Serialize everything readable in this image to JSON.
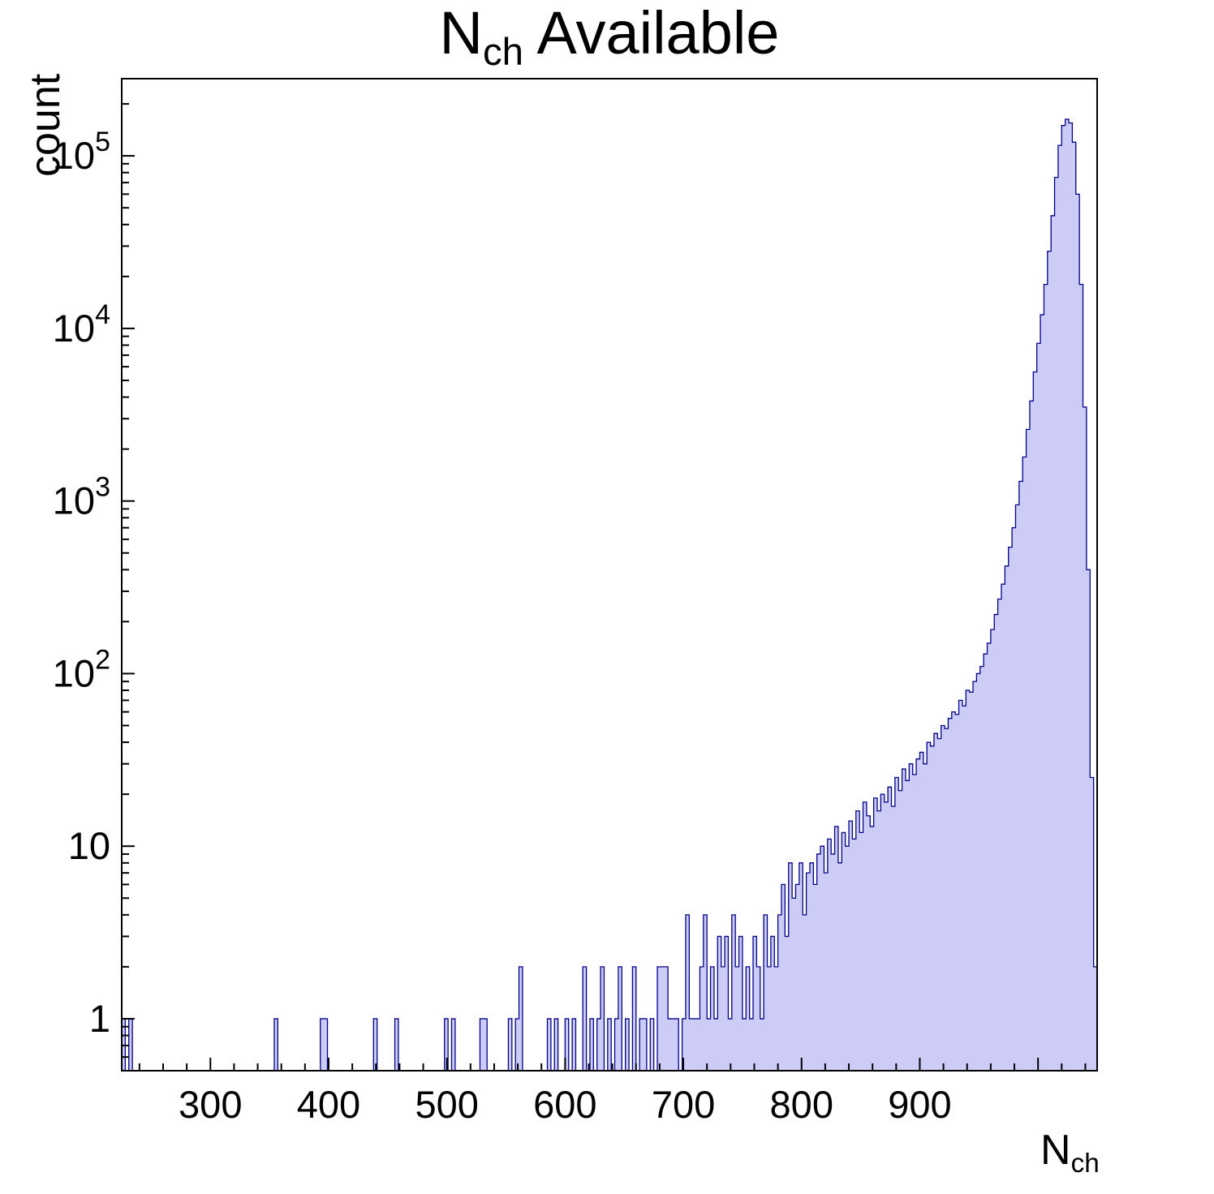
{
  "title": {
    "prefix": "N",
    "subscript": "ch",
    "suffix": " Available"
  },
  "axes": {
    "y_label": "count",
    "x_label_prefix": "N",
    "x_label_subscript": "ch"
  },
  "style": {
    "fill_color": "#ccccf6",
    "line_color": "#00008b",
    "frame_color": "#000000",
    "text_color": "#000000",
    "background": "#ffffff"
  },
  "chart_data": {
    "type": "histogram",
    "title": "N_ch Available",
    "xlabel": "N_ch",
    "ylabel": "count",
    "y_scale": "log",
    "x_range": [
      225,
      1050
    ],
    "y_range": [
      0.5,
      280000
    ],
    "bin_width": 3,
    "x_major_ticks": [
      300,
      400,
      500,
      600,
      700,
      800,
      900
    ],
    "x_minor_step": 20,
    "y_major_exponents": [
      0,
      1,
      2,
      3,
      4,
      5
    ],
    "y_tick_labels": [
      "1",
      "10",
      "10^2",
      "10^3",
      "10^4",
      "10^5"
    ],
    "peak": {
      "x": 1024,
      "count": 163000
    },
    "sparse_bins": [
      [
        225,
        1
      ],
      [
        231,
        1
      ],
      [
        354,
        1
      ],
      [
        393,
        1
      ],
      [
        397,
        1
      ],
      [
        438,
        1
      ],
      [
        456,
        1
      ],
      [
        498,
        1
      ],
      [
        504,
        1
      ],
      [
        528,
        1
      ],
      [
        531,
        1
      ],
      [
        552,
        1
      ],
      [
        558,
        1
      ],
      [
        561,
        2
      ],
      [
        585,
        1
      ],
      [
        591,
        1
      ],
      [
        600,
        1
      ],
      [
        606,
        1
      ],
      [
        615,
        2
      ],
      [
        621,
        1
      ],
      [
        627,
        1
      ],
      [
        630,
        2
      ],
      [
        636,
        1
      ],
      [
        642,
        1
      ],
      [
        645,
        2
      ],
      [
        651,
        1
      ],
      [
        657,
        2
      ],
      [
        663,
        1
      ],
      [
        666,
        1
      ],
      [
        672,
        1
      ],
      [
        678,
        2
      ],
      [
        681,
        2
      ],
      [
        684,
        2
      ],
      [
        687,
        1
      ],
      [
        690,
        1
      ],
      [
        693,
        1
      ],
      [
        699,
        1
      ],
      [
        702,
        4
      ],
      [
        705,
        1
      ],
      [
        708,
        1
      ],
      [
        711,
        1
      ],
      [
        714,
        2
      ],
      [
        717,
        4
      ],
      [
        720,
        1
      ],
      [
        723,
        2
      ],
      [
        726,
        1
      ],
      [
        729,
        3
      ],
      [
        732,
        2
      ],
      [
        735,
        3
      ],
      [
        738,
        1
      ],
      [
        741,
        4
      ],
      [
        744,
        2
      ],
      [
        747,
        3
      ]
    ],
    "dense_start": 750,
    "dense_counts": [
      1,
      2,
      1,
      3,
      2,
      1,
      4,
      2,
      3,
      2,
      4,
      6,
      3,
      8,
      5,
      6,
      8,
      4,
      7,
      8,
      6,
      9,
      10,
      7,
      11,
      9,
      13,
      8,
      12,
      10,
      14,
      11,
      16,
      12,
      18,
      15,
      13,
      19,
      16,
      20,
      18,
      22,
      17,
      25,
      21,
      28,
      24,
      30,
      26,
      32,
      35,
      30,
      40,
      38,
      45,
      42,
      50,
      48,
      55,
      60,
      58,
      70,
      65,
      80,
      78,
      90,
      100,
      110,
      130,
      150,
      180,
      220,
      270,
      330,
      420,
      540,
      700,
      950,
      1300,
      1800,
      2600,
      3800,
      5600,
      8200,
      12000,
      18000,
      28000,
      45000,
      75000,
      115000,
      150000,
      163000,
      155000,
      120000,
      60000,
      18000,
      3500,
      400,
      25,
      2
    ]
  }
}
